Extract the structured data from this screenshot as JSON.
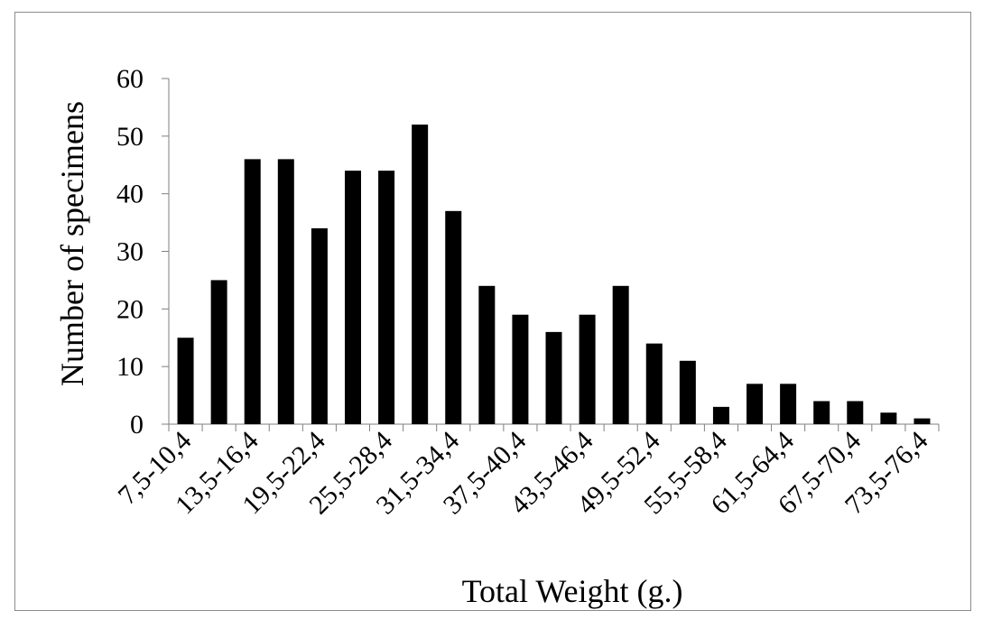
{
  "chart_data": {
    "type": "bar",
    "xlabel": "Total Weight (g.)",
    "ylabel": "Number of specimens",
    "ylim": [
      0,
      60
    ],
    "yticks": [
      0,
      10,
      20,
      30,
      40,
      50,
      60
    ],
    "grid": false,
    "legend": "none",
    "bar_color": "#000000",
    "categories": [
      "7,5-10,4",
      "10,5-13,4",
      "13,5-16,4",
      "16,5-19,4",
      "19,5-22,4",
      "22,5-25,4",
      "25,5-28,4",
      "28,5-31,4",
      "31,5-34,4",
      "34,5-37,4",
      "37,5-40,4",
      "40,5-43,4",
      "43,5-46,4",
      "46,5-49,4",
      "49,5-52,4",
      "52,5-55,4",
      "55,5-58,4",
      "58,5-61,4",
      "61,5-64,4",
      "64,5-67,4",
      "67,5-70,4",
      "70,5-73,4",
      "73,5-76,4"
    ],
    "visible_category_labels": [
      "7,5-10,4",
      "13,5-16,4",
      "19,5-22,4",
      "25,5-28,4",
      "31,5-34,4",
      "37,5-40,4",
      "43,5-46,4",
      "49,5-52,4",
      "55,5-58,4",
      "61,5-64,4",
      "67,5-70,4",
      "73,5-76,4"
    ],
    "values": [
      15,
      25,
      46,
      46,
      34,
      44,
      44,
      52,
      37,
      24,
      19,
      16,
      19,
      24,
      14,
      11,
      3,
      7,
      7,
      4,
      4,
      2,
      1
    ]
  }
}
